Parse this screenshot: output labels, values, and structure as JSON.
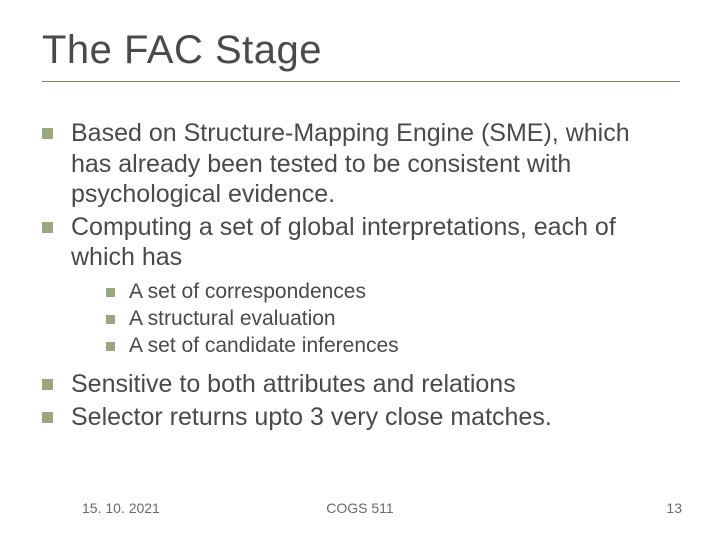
{
  "colors": {
    "background": "#ffffff",
    "text": "#4a4a4a",
    "bullet": "#9aa87e",
    "rule": "#7a8a6a",
    "footer_text": "#6a6a6a"
  },
  "typography": {
    "family": "Verdana",
    "title_size_pt": 40,
    "body_size_pt": 25,
    "sub_size_pt": 21,
    "footer_size_pt": 14
  },
  "title": "The FAC Stage",
  "bullets": [
    {
      "text": "Based on Structure-Mapping Engine (SME), which has already been tested to be consistent with psychological evidence."
    },
    {
      "text": "Computing a set of global interpretations, each of which has",
      "sub": [
        "A set of correspondences",
        "A structural evaluation",
        "A set of candidate inferences"
      ]
    },
    {
      "text": "Sensitive to both attributes and relations"
    },
    {
      "text": "Selector returns upto 3 very close matches."
    }
  ],
  "footer": {
    "date": "15. 10. 2021",
    "center": "COGS 511",
    "page": "13"
  }
}
